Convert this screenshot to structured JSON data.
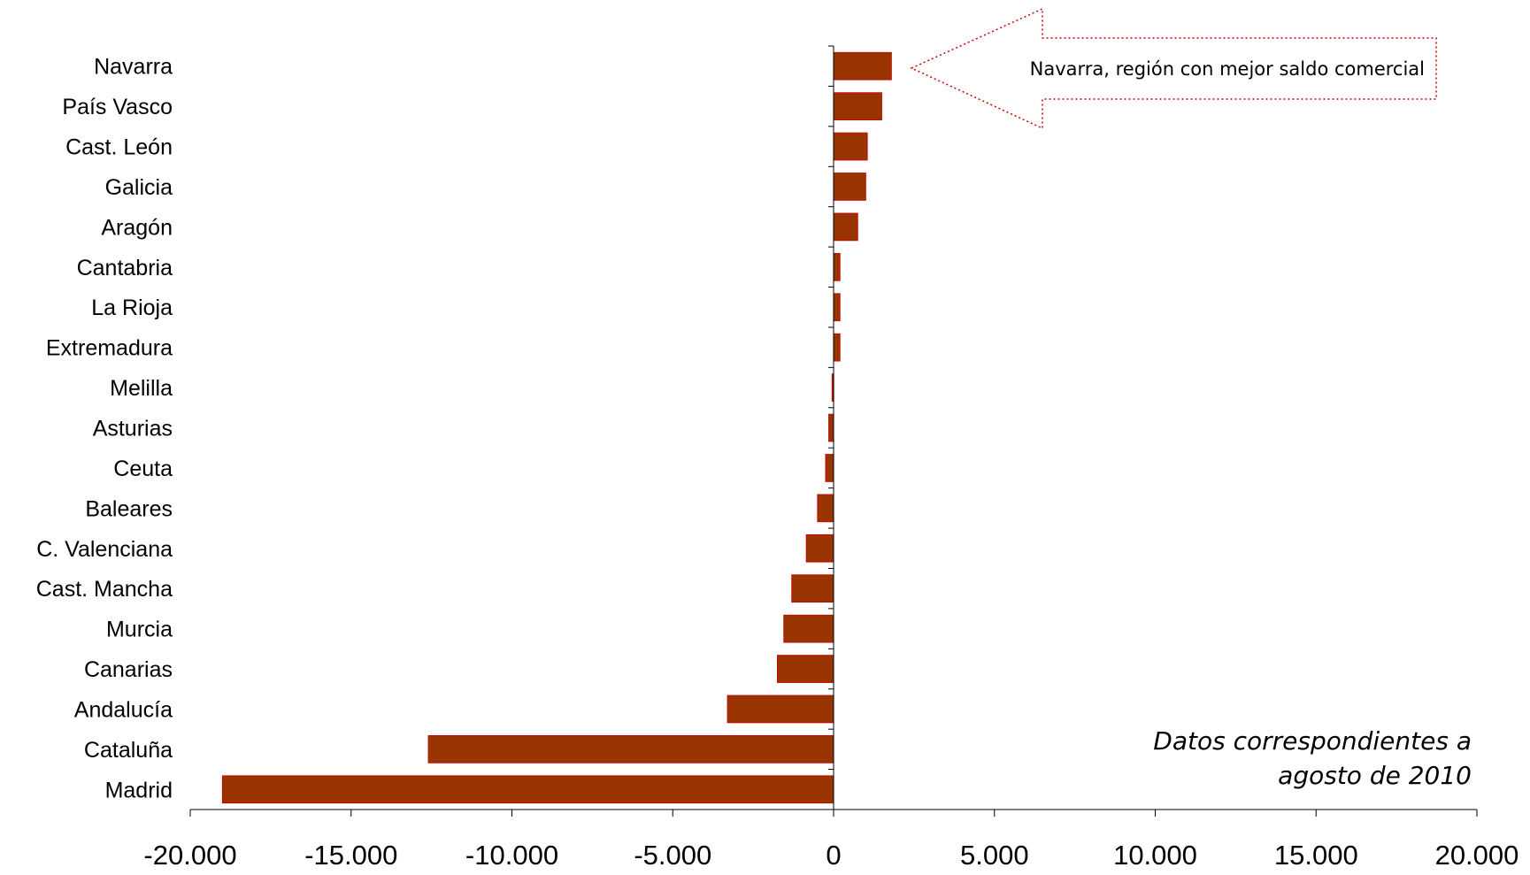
{
  "chart_data": {
    "type": "bar",
    "orientation": "horizontal",
    "categories": [
      "Navarra",
      "País Vasco",
      "Cast. León",
      "Galicia",
      "Aragón",
      "Cantabria",
      "La Rioja",
      "Extremadura",
      "Melilla",
      "Asturias",
      "Ceuta",
      "Baleares",
      "C. Valenciana",
      "Cast. Mancha",
      "Murcia",
      "Canarias",
      "Andalucía",
      "Cataluña",
      "Madrid"
    ],
    "values": [
      1800,
      1500,
      1050,
      1000,
      750,
      200,
      200,
      200,
      -50,
      -150,
      -250,
      -500,
      -850,
      -1300,
      -1550,
      -1750,
      -3300,
      -12600,
      -19000
    ],
    "xlim": [
      -20000,
      20000
    ],
    "xticks": [
      -20000,
      -15000,
      -10000,
      -5000,
      0,
      5000,
      10000,
      15000,
      20000
    ],
    "xtick_labels": [
      "-20.000",
      "-15.000",
      "-10.000",
      "-5.000",
      "0",
      "5.000",
      "10.000",
      "15.000",
      "20.000"
    ],
    "bar_color": "#993300",
    "annotation": "Navarra, región con mejor saldo comercial",
    "note_lines": [
      "Datos correspondientes a",
      "agosto de 2010"
    ]
  }
}
